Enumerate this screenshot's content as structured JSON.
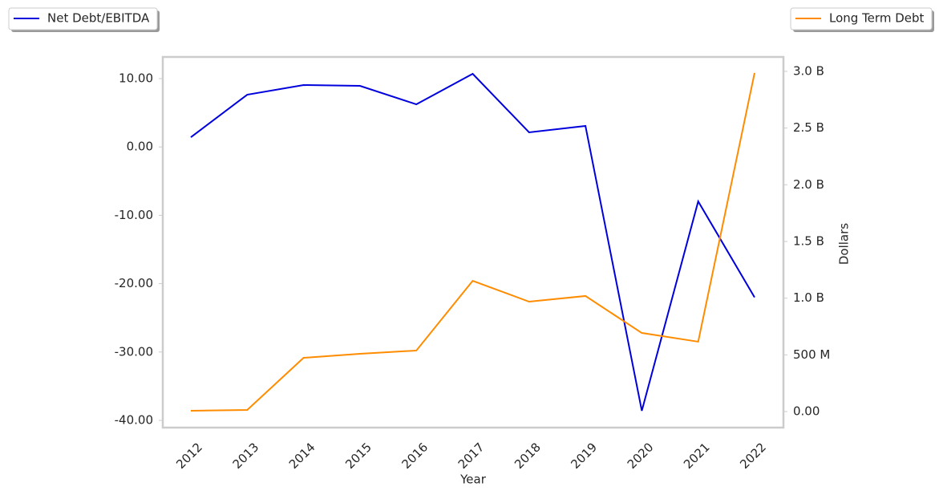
{
  "chart_data": {
    "type": "line",
    "xlabel": "Year",
    "y2label": "Dollars",
    "categories": [
      "2012",
      "2013",
      "2014",
      "2015",
      "2016",
      "2017",
      "2018",
      "2019",
      "2020",
      "2021",
      "2022"
    ],
    "series": [
      {
        "name": "Net Debt/EBITDA",
        "color": "#0000dd",
        "axis": "y",
        "values": [
          1.43,
          7.65,
          9.06,
          8.94,
          6.24,
          10.7,
          2.14,
          3.08,
          -38.6,
          -7.96,
          -22.0
        ]
      },
      {
        "name": "Long Term Debt",
        "color": "#ff8c00",
        "axis": "y2",
        "values": [
          7000000,
          14000000,
          474000000,
          509000000,
          538000000,
          1153000000,
          969000000,
          1019000000,
          693000000,
          616000000,
          2986000000
        ]
      }
    ],
    "ylim": [
      -41.06,
      13.17
    ],
    "yticks": [
      {
        "value": 10,
        "label": "10.00"
      },
      {
        "value": 0,
        "label": "0.00"
      },
      {
        "value": -10,
        "label": "-10.00"
      },
      {
        "value": -20,
        "label": "-20.00"
      },
      {
        "value": -30,
        "label": "-30.00"
      },
      {
        "value": -40,
        "label": "-40.00"
      }
    ],
    "y2lim": [
      -141500000,
      3127000000
    ],
    "y2ticks": [
      {
        "value": 3000000000,
        "label": "3.0 B"
      },
      {
        "value": 2500000000,
        "label": "2.5 B"
      },
      {
        "value": 2000000000,
        "label": "2.0 B"
      },
      {
        "value": 1500000000,
        "label": "1.5 B"
      },
      {
        "value": 1000000000,
        "label": "1.0 B"
      },
      {
        "value": 500000000,
        "label": "500 M"
      },
      {
        "value": 0,
        "label": "0.00"
      }
    ],
    "grid": false
  }
}
